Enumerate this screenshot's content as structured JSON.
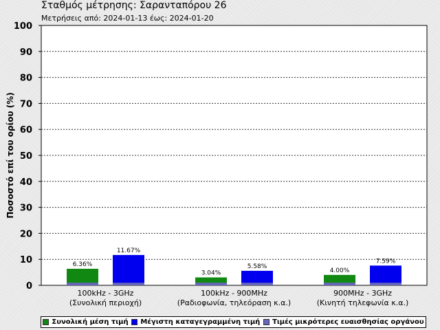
{
  "page": {
    "title": "Σταθμός μέτρησης: Σαρανταπόρου 26",
    "subtitle": "Μετρήσεις από: 2024-01-13 έως: 2024-01-20"
  },
  "chart_data": {
    "type": "bar",
    "ylabel": "Ποσοστό επί του ορίου (%)",
    "xlabel": "",
    "ylim": [
      0,
      100
    ],
    "yticks": [
      0,
      10,
      20,
      30,
      40,
      50,
      60,
      70,
      80,
      90,
      100
    ],
    "grid": true,
    "legend_position": "bottom",
    "categories": [
      {
        "line1": "100kHz - 3GHz",
        "line2": "(Συνολική περιοχή)"
      },
      {
        "line1": "100kHz - 900MHz",
        "line2": "(Ραδιοφωνία, τηλεόραση κ.α.)"
      },
      {
        "line1": "900MHz - 3GHz",
        "line2": "(Κινητή τηλεφωνία κ.α.)"
      }
    ],
    "series": [
      {
        "name": "Συνολική μέση τιμή",
        "color": "#118811",
        "values": [
          6.36,
          3.04,
          4.0
        ],
        "labels": [
          "6.36%",
          "3.04%",
          "4.00%"
        ]
      },
      {
        "name": "Μέγιστη καταγεγραμμένη τιμή",
        "color": "#0000ee",
        "values": [
          11.67,
          5.58,
          7.59
        ],
        "labels": [
          "11.67%",
          "5.58%",
          "7.59%"
        ]
      }
    ],
    "sensitivity": {
      "name": "Τιμές μικρότερες ευαισθησίας οργάνου",
      "color": "#6666bb",
      "value": 1.0
    }
  }
}
